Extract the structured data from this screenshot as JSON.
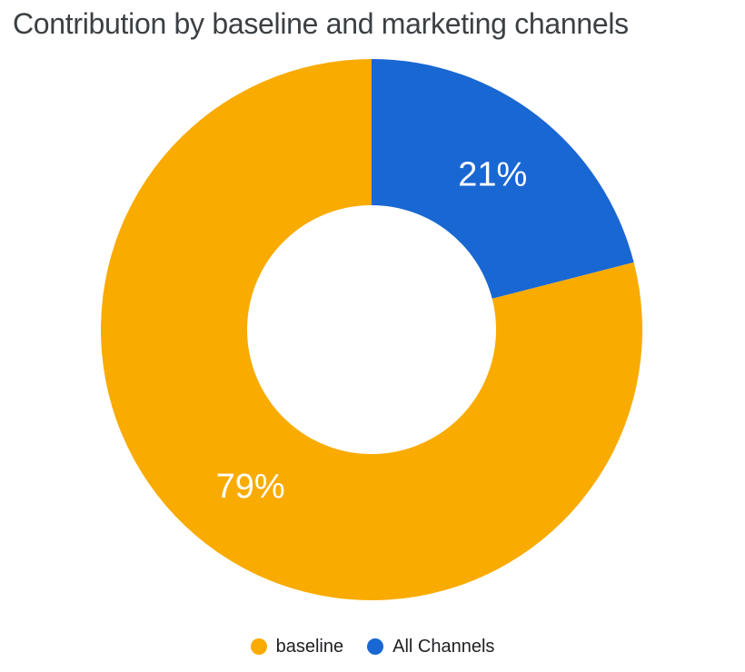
{
  "chart_data": {
    "type": "pie",
    "donut": true,
    "title": "Contribution by baseline and marketing channels",
    "series": [
      {
        "name": "baseline",
        "value": 79,
        "label": "79%",
        "color": "#F9AB00"
      },
      {
        "name": "All Channels",
        "value": 21,
        "label": "21%",
        "color": "#1967D2"
      }
    ],
    "clockwise_order_from_top": [
      "All Channels",
      "baseline"
    ],
    "label_color": "#FFFFFF",
    "legend_position": "bottom",
    "background_color": "#FFFFFF",
    "title_color": "#3C4043",
    "legend_text_color": "#202124"
  }
}
